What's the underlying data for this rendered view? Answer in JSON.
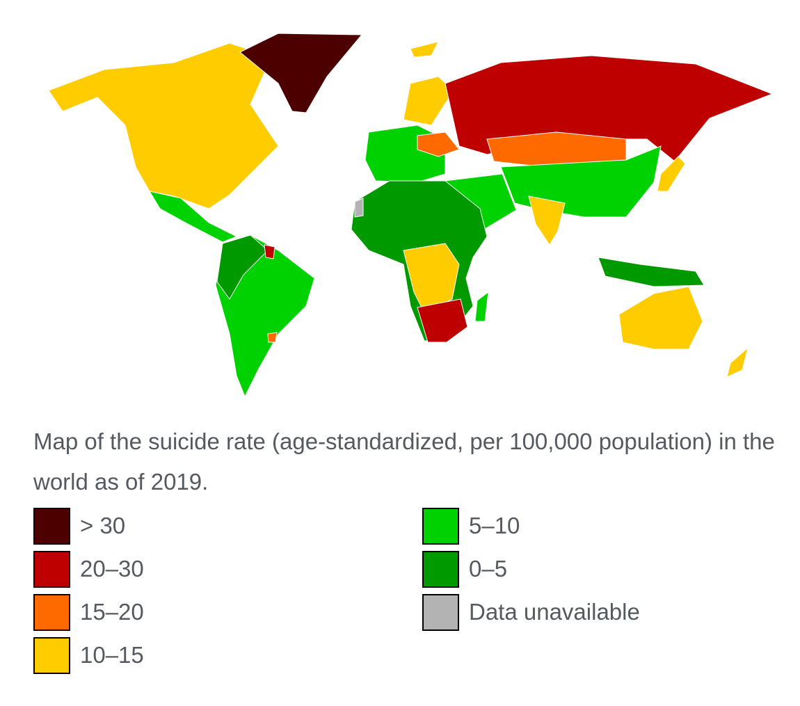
{
  "caption": "Map of the suicide rate (age-standardized, per 100,000 population) in the world as of 2019.",
  "legend": {
    "items": [
      {
        "label": "> 30",
        "color": "#4d0000"
      },
      {
        "label": "20–30",
        "color": "#bf0000"
      },
      {
        "label": "15–20",
        "color": "#ff6a00"
      },
      {
        "label": "10–15",
        "color": "#ffcc00"
      },
      {
        "label": "5–10",
        "color": "#00d100"
      },
      {
        "label": "0–5",
        "color": "#009900"
      },
      {
        "label": "Data unavailable",
        "color": "#b3b3b3"
      }
    ]
  }
}
